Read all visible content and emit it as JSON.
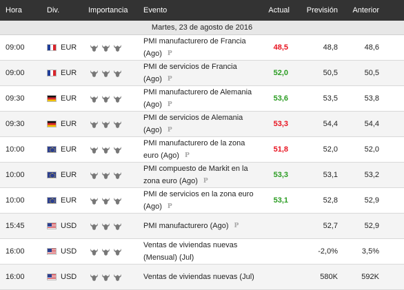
{
  "headers": {
    "hora": "Hora",
    "div": "Div.",
    "importancia": "Importancia",
    "evento": "Evento",
    "actual": "Actual",
    "prevision": "Previsión",
    "anterior": "Anterior"
  },
  "date_label": "Martes, 23 de agosto de 2016",
  "colors": {
    "up": "#2a9c22",
    "down": "#e8121f",
    "bull_on": "#777777",
    "bull_off": "#d0d0d0"
  },
  "events": [
    {
      "time": "09:00",
      "flag": "fr",
      "currency": "EUR",
      "importance": 3,
      "name": "PMI manufacturero de Francia (Ago)",
      "prelim": true,
      "actual": "48,5",
      "actual_color": "red",
      "forecast": "48,8",
      "previous": "48,6"
    },
    {
      "time": "09:00",
      "flag": "fr",
      "currency": "EUR",
      "importance": 3,
      "name": "PMI de servicios de Francia (Ago)",
      "prelim": true,
      "actual": "52,0",
      "actual_color": "green",
      "forecast": "50,5",
      "previous": "50,5"
    },
    {
      "time": "09:30",
      "flag": "de",
      "currency": "EUR",
      "importance": 3,
      "name": "PMI manufacturero de Alemania (Ago)",
      "prelim": true,
      "actual": "53,6",
      "actual_color": "green",
      "forecast": "53,5",
      "previous": "53,8"
    },
    {
      "time": "09:30",
      "flag": "de",
      "currency": "EUR",
      "importance": 3,
      "name": "PMI de servicios de Alemania (Ago)",
      "prelim": true,
      "actual": "53,3",
      "actual_color": "red",
      "forecast": "54,4",
      "previous": "54,4"
    },
    {
      "time": "10:00",
      "flag": "eu",
      "currency": "EUR",
      "importance": 3,
      "name": "PMI manufacturero de la zona euro (Ago)",
      "prelim": true,
      "actual": "51,8",
      "actual_color": "red",
      "forecast": "52,0",
      "previous": "52,0"
    },
    {
      "time": "10:00",
      "flag": "eu",
      "currency": "EUR",
      "importance": 3,
      "name": "PMI compuesto de Markit en la zona euro (Ago)",
      "prelim": true,
      "actual": "53,3",
      "actual_color": "green",
      "forecast": "53,1",
      "previous": "53,2"
    },
    {
      "time": "10:00",
      "flag": "eu",
      "currency": "EUR",
      "importance": 3,
      "name": "PMI de servicios en la zona euro (Ago)",
      "prelim": true,
      "actual": "53,1",
      "actual_color": "green",
      "forecast": "52,8",
      "previous": "52,9"
    },
    {
      "time": "15:45",
      "flag": "us",
      "currency": "USD",
      "importance": 3,
      "name": "PMI manufacturero (Ago)",
      "prelim": true,
      "actual": "",
      "actual_color": "black",
      "forecast": "52,7",
      "previous": "52,9"
    },
    {
      "time": "16:00",
      "flag": "us",
      "currency": "USD",
      "importance": 3,
      "name": "Ventas de viviendas nuevas (Mensual) (Jul)",
      "prelim": false,
      "actual": "",
      "actual_color": "black",
      "forecast": "-2,0%",
      "previous": "3,5%"
    },
    {
      "time": "16:00",
      "flag": "us",
      "currency": "USD",
      "importance": 3,
      "name": "Ventas de viviendas nuevas (Jul)",
      "prelim": false,
      "actual": "",
      "actual_color": "black",
      "forecast": "580K",
      "previous": "592K"
    }
  ]
}
